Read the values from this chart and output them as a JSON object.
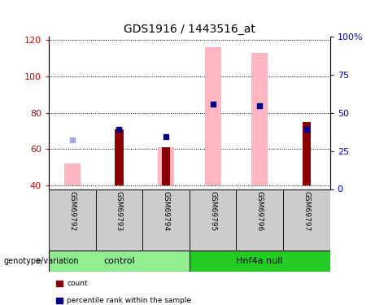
{
  "title": "GDS1916 / 1443516_at",
  "samples": [
    "GSM69792",
    "GSM69793",
    "GSM69794",
    "GSM69795",
    "GSM69796",
    "GSM69797"
  ],
  "ylim_left": [
    38,
    122
  ],
  "ylim_right": [
    0,
    100
  ],
  "yticks_left": [
    40,
    60,
    80,
    100,
    120
  ],
  "yticks_right": [
    0,
    25,
    50,
    75,
    100
  ],
  "ytick_labels_right": [
    "0",
    "25",
    "50",
    "75",
    "100%"
  ],
  "count_bars_top": [
    40,
    71,
    61,
    40,
    40,
    75
  ],
  "count_base": 40,
  "pink_bars_top": [
    52,
    40,
    61,
    116,
    113,
    40
  ],
  "pink_base": 40,
  "blue_squares_y": [
    0,
    71,
    67,
    85,
    84,
    71
  ],
  "blue_squares_present": [
    false,
    true,
    true,
    true,
    true,
    true
  ],
  "lightblue_squares_y": [
    65,
    0,
    0,
    85,
    84,
    0
  ],
  "lightblue_squares_present": [
    true,
    false,
    false,
    true,
    true,
    false
  ],
  "count_color": "#8B0000",
  "pink_color": "#FFB6C1",
  "blue_color": "#00008B",
  "lightblue_color": "#AAAADD",
  "control_color": "#90EE90",
  "hnf4a_color": "#22CC22",
  "label_bg_color": "#CCCCCC",
  "left_axis_color": "#CC0000",
  "right_axis_color": "#0000CC"
}
